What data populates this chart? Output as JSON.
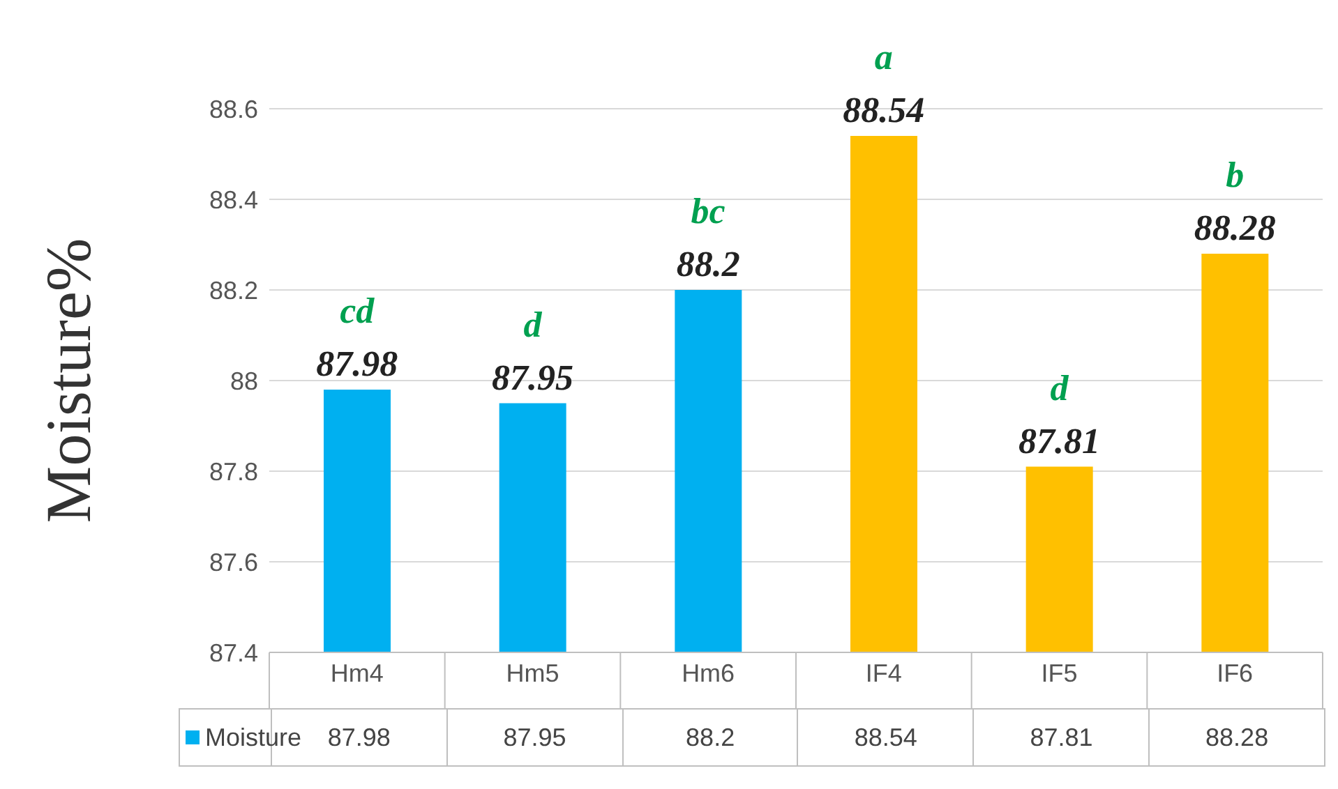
{
  "chart_data": {
    "type": "bar",
    "ylabel": "Moisture%",
    "categories": [
      "Hm4",
      "Hm5",
      "Hm6",
      "IF4",
      "IF5",
      "IF6"
    ],
    "series": [
      {
        "name": "Moisture",
        "color": "#00b0f0",
        "colors": [
          "#00b0f0",
          "#00b0f0",
          "#00b0f0",
          "#ffc000",
          "#ffc000",
          "#ffc000"
        ],
        "values": [
          87.98,
          87.95,
          88.2,
          88.54,
          87.81,
          88.28
        ]
      }
    ],
    "ylim": [
      87.4,
      88.6
    ],
    "yticks": [
      87.4,
      87.6,
      87.8,
      88,
      88.2,
      88.4,
      88.6
    ],
    "grid": "y",
    "data_labels": true,
    "legend": "bottom",
    "annotations": [
      {
        "text": "87.98",
        "x": "Hm4",
        "y": 87.98
      },
      {
        "text": "87.95",
        "x": "Hm5",
        "y": 87.95
      },
      {
        "text": "88.2",
        "x": "Hm6",
        "y": 88.2
      },
      {
        "text": "88.54",
        "x": "IF4",
        "y": 88.54
      },
      {
        "text": "87.81",
        "x": "IF5",
        "y": 87.81
      },
      {
        "text": "88.28",
        "x": "IF6",
        "y": 88.28
      },
      {
        "text": "cd",
        "x": "Hm4",
        "y": 87.98
      },
      {
        "text": "d",
        "x": "Hm5",
        "y": 87.95
      },
      {
        "text": "bc",
        "x": "Hm6",
        "y": 88.2
      },
      {
        "text": "a",
        "x": "IF4",
        "y": 88.54
      },
      {
        "text": "d",
        "x": "IF5",
        "y": 87.81
      },
      {
        "text": "b",
        "x": "IF6",
        "y": 88.28
      }
    ]
  }
}
